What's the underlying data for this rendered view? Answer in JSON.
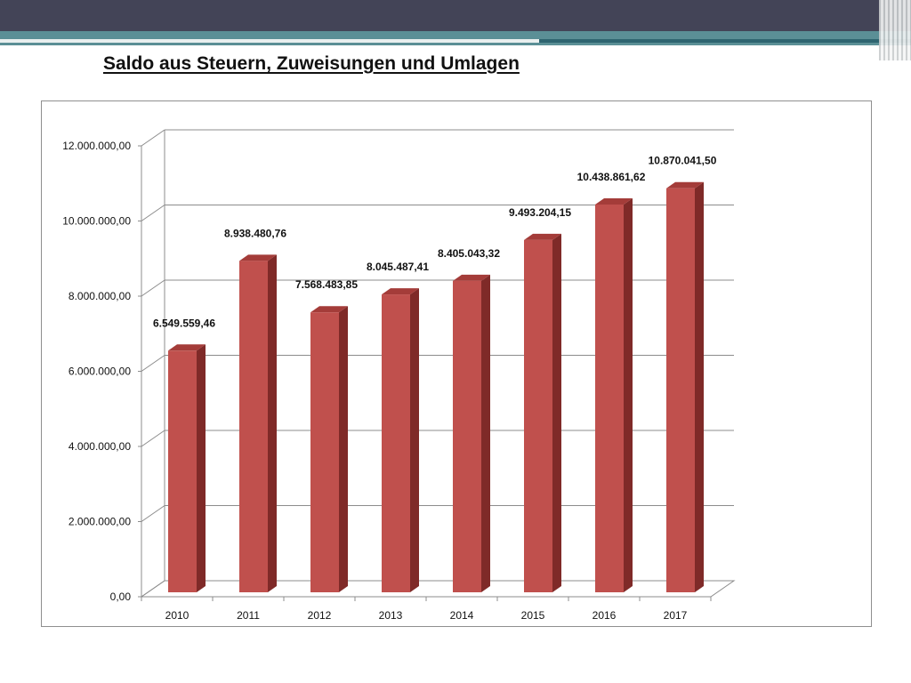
{
  "slide": {
    "title": "Saldo aus Steuern, Zuweisungen und Umlagen"
  },
  "colors": {
    "header_dark": "#434457",
    "header_accent": "#5b8f96",
    "bar_front": "#c0504d",
    "bar_side": "#7f2a28",
    "bar_top": "#a43c39",
    "grid": "#8c8c8c"
  },
  "chart_data": {
    "type": "bar",
    "title": "",
    "xlabel": "",
    "ylabel": "",
    "categories": [
      "2010",
      "2011",
      "2012",
      "2013",
      "2014",
      "2015",
      "2016",
      "2017"
    ],
    "values": [
      6549559.46,
      8938480.76,
      7568483.85,
      8045487.41,
      8405043.32,
      9493204.15,
      10438861.62,
      10870041.5
    ],
    "value_labels": [
      "6.549.559,46",
      "8.938.480,76",
      "7.568.483,85",
      "8.045.487,41",
      "8.405.043,32",
      "9.493.204,15",
      "10.438.861,62",
      "10.870.041,50"
    ],
    "y_ticks": [
      0,
      2000000,
      4000000,
      6000000,
      8000000,
      10000000,
      12000000
    ],
    "y_tick_labels": [
      "0,00",
      "2.000.000,00",
      "4.000.000,00",
      "6.000.000,00",
      "8.000.000,00",
      "10.000.000,00",
      "12.000.000,00"
    ],
    "ylim": [
      0,
      12000000
    ],
    "grid": true,
    "legend": "none",
    "style": "3d-column"
  }
}
